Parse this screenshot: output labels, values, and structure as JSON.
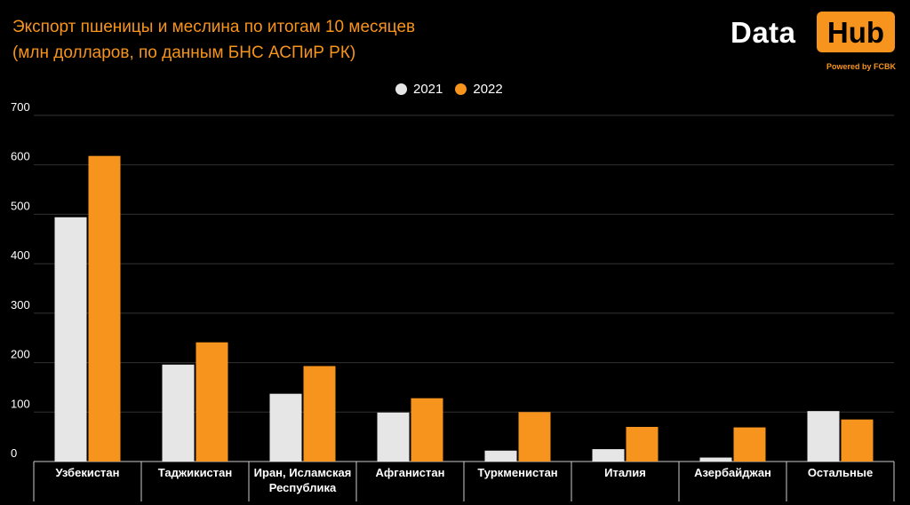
{
  "title": {
    "line1": "Экспорт пшеницы и меслина по итогам 10 месяцев",
    "line2": "(млн долларов, по данным БНС АСПиР РК)"
  },
  "logo": {
    "data": "Data",
    "hub": "Hub",
    "powered": "Powered by FCBK"
  },
  "colors": {
    "background": "#000000",
    "title": "#f7941d",
    "series_2021": "#e6e6e6",
    "series_2022": "#f7941d",
    "grid": "#333333"
  },
  "chart_data": {
    "type": "bar",
    "categories": [
      [
        "Узбекистан"
      ],
      [
        "Таджикистан"
      ],
      [
        "Иран, Исламская",
        "Республика"
      ],
      [
        "Афганистан"
      ],
      [
        "Туркменистан"
      ],
      [
        "Италия"
      ],
      [
        "Азербайджан"
      ],
      [
        "Остальные"
      ]
    ],
    "series": [
      {
        "name": "2021",
        "color": "#e6e6e6",
        "values": [
          494,
          196,
          137,
          99,
          22,
          25,
          8,
          102
        ]
      },
      {
        "name": "2022",
        "color": "#f7941d",
        "values": [
          618,
          241,
          193,
          128,
          100,
          70,
          69,
          85
        ]
      }
    ],
    "ylim": [
      0,
      700
    ],
    "yticks": [
      "0",
      "100",
      "200",
      "300",
      "400",
      "500",
      "600",
      "700"
    ],
    "grid": true,
    "legend_position": "top-center"
  }
}
